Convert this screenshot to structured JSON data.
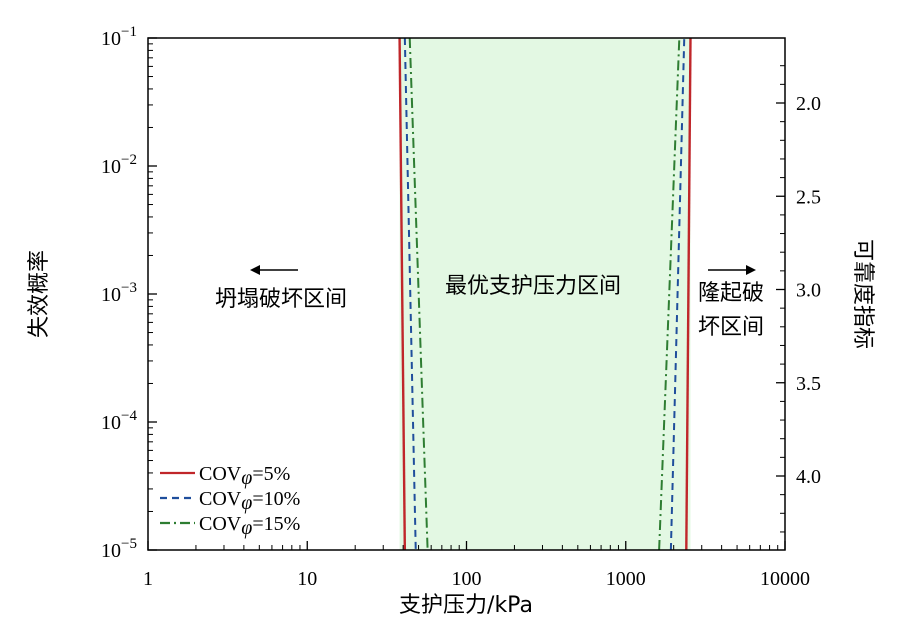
{
  "chart_data": {
    "type": "line",
    "xscale": "log",
    "yscale": "log",
    "xlim": [
      1,
      10000
    ],
    "ylim": [
      1e-05,
      0.1
    ],
    "xlabel": "支护压力/kPa",
    "ylabel": "失效概率",
    "y2label": "可靠度指标",
    "x_ticks": [
      "1",
      "10",
      "100",
      "1000",
      "10000"
    ],
    "y_ticks": [
      {
        "base": "10",
        "exp": "−5",
        "value": 1e-05
      },
      {
        "base": "10",
        "exp": "−4",
        "value": 0.0001
      },
      {
        "base": "10",
        "exp": "−3",
        "value": 0.001
      },
      {
        "base": "10",
        "exp": "−2",
        "value": 0.01
      },
      {
        "base": "10",
        "exp": "−1",
        "value": 0.1
      }
    ],
    "y2_ticks": [
      {
        "label": "2.0",
        "value": 2.0
      },
      {
        "label": "2.5",
        "value": 2.5
      },
      {
        "label": "3.0",
        "value": 3.0
      },
      {
        "label": "3.5",
        "value": 3.5
      },
      {
        "label": "4.0",
        "value": 4.0
      }
    ],
    "series": [
      {
        "name": "=5%",
        "prefix": "COV",
        "sub": "φ",
        "color": "#c0262a",
        "dash": "solid",
        "left": [
          [
            38,
            0.1
          ],
          [
            41,
            1e-05
          ]
        ],
        "right": [
          [
            2400,
            1e-05
          ],
          [
            2550,
            0.1
          ]
        ]
      },
      {
        "name": "=10%",
        "prefix": "COV",
        "sub": "φ",
        "color": "#1f4e9c",
        "dash": "dashed",
        "left": [
          [
            41,
            0.1
          ],
          [
            48,
            1e-05
          ]
        ],
        "right": [
          [
            1920,
            1e-05
          ],
          [
            2330,
            0.1
          ]
        ]
      },
      {
        "name": "=15%",
        "prefix": "COV",
        "sub": "φ",
        "color": "#2e7d32",
        "dash": "dashdot",
        "left": [
          [
            44,
            0.1
          ],
          [
            57,
            1e-05
          ]
        ],
        "right": [
          [
            1620,
            1e-05
          ],
          [
            2170,
            0.1
          ]
        ]
      }
    ],
    "optimal_region": {
      "x": [
        38,
        2550
      ],
      "color": "#e3f8e3"
    },
    "annotations": {
      "collapse": "坍塌破坏区间",
      "optimal": "最优支护压力区间",
      "heave_line1": "隆起破",
      "heave_line2": "坏区间"
    },
    "legend_position": "bottom-left"
  }
}
